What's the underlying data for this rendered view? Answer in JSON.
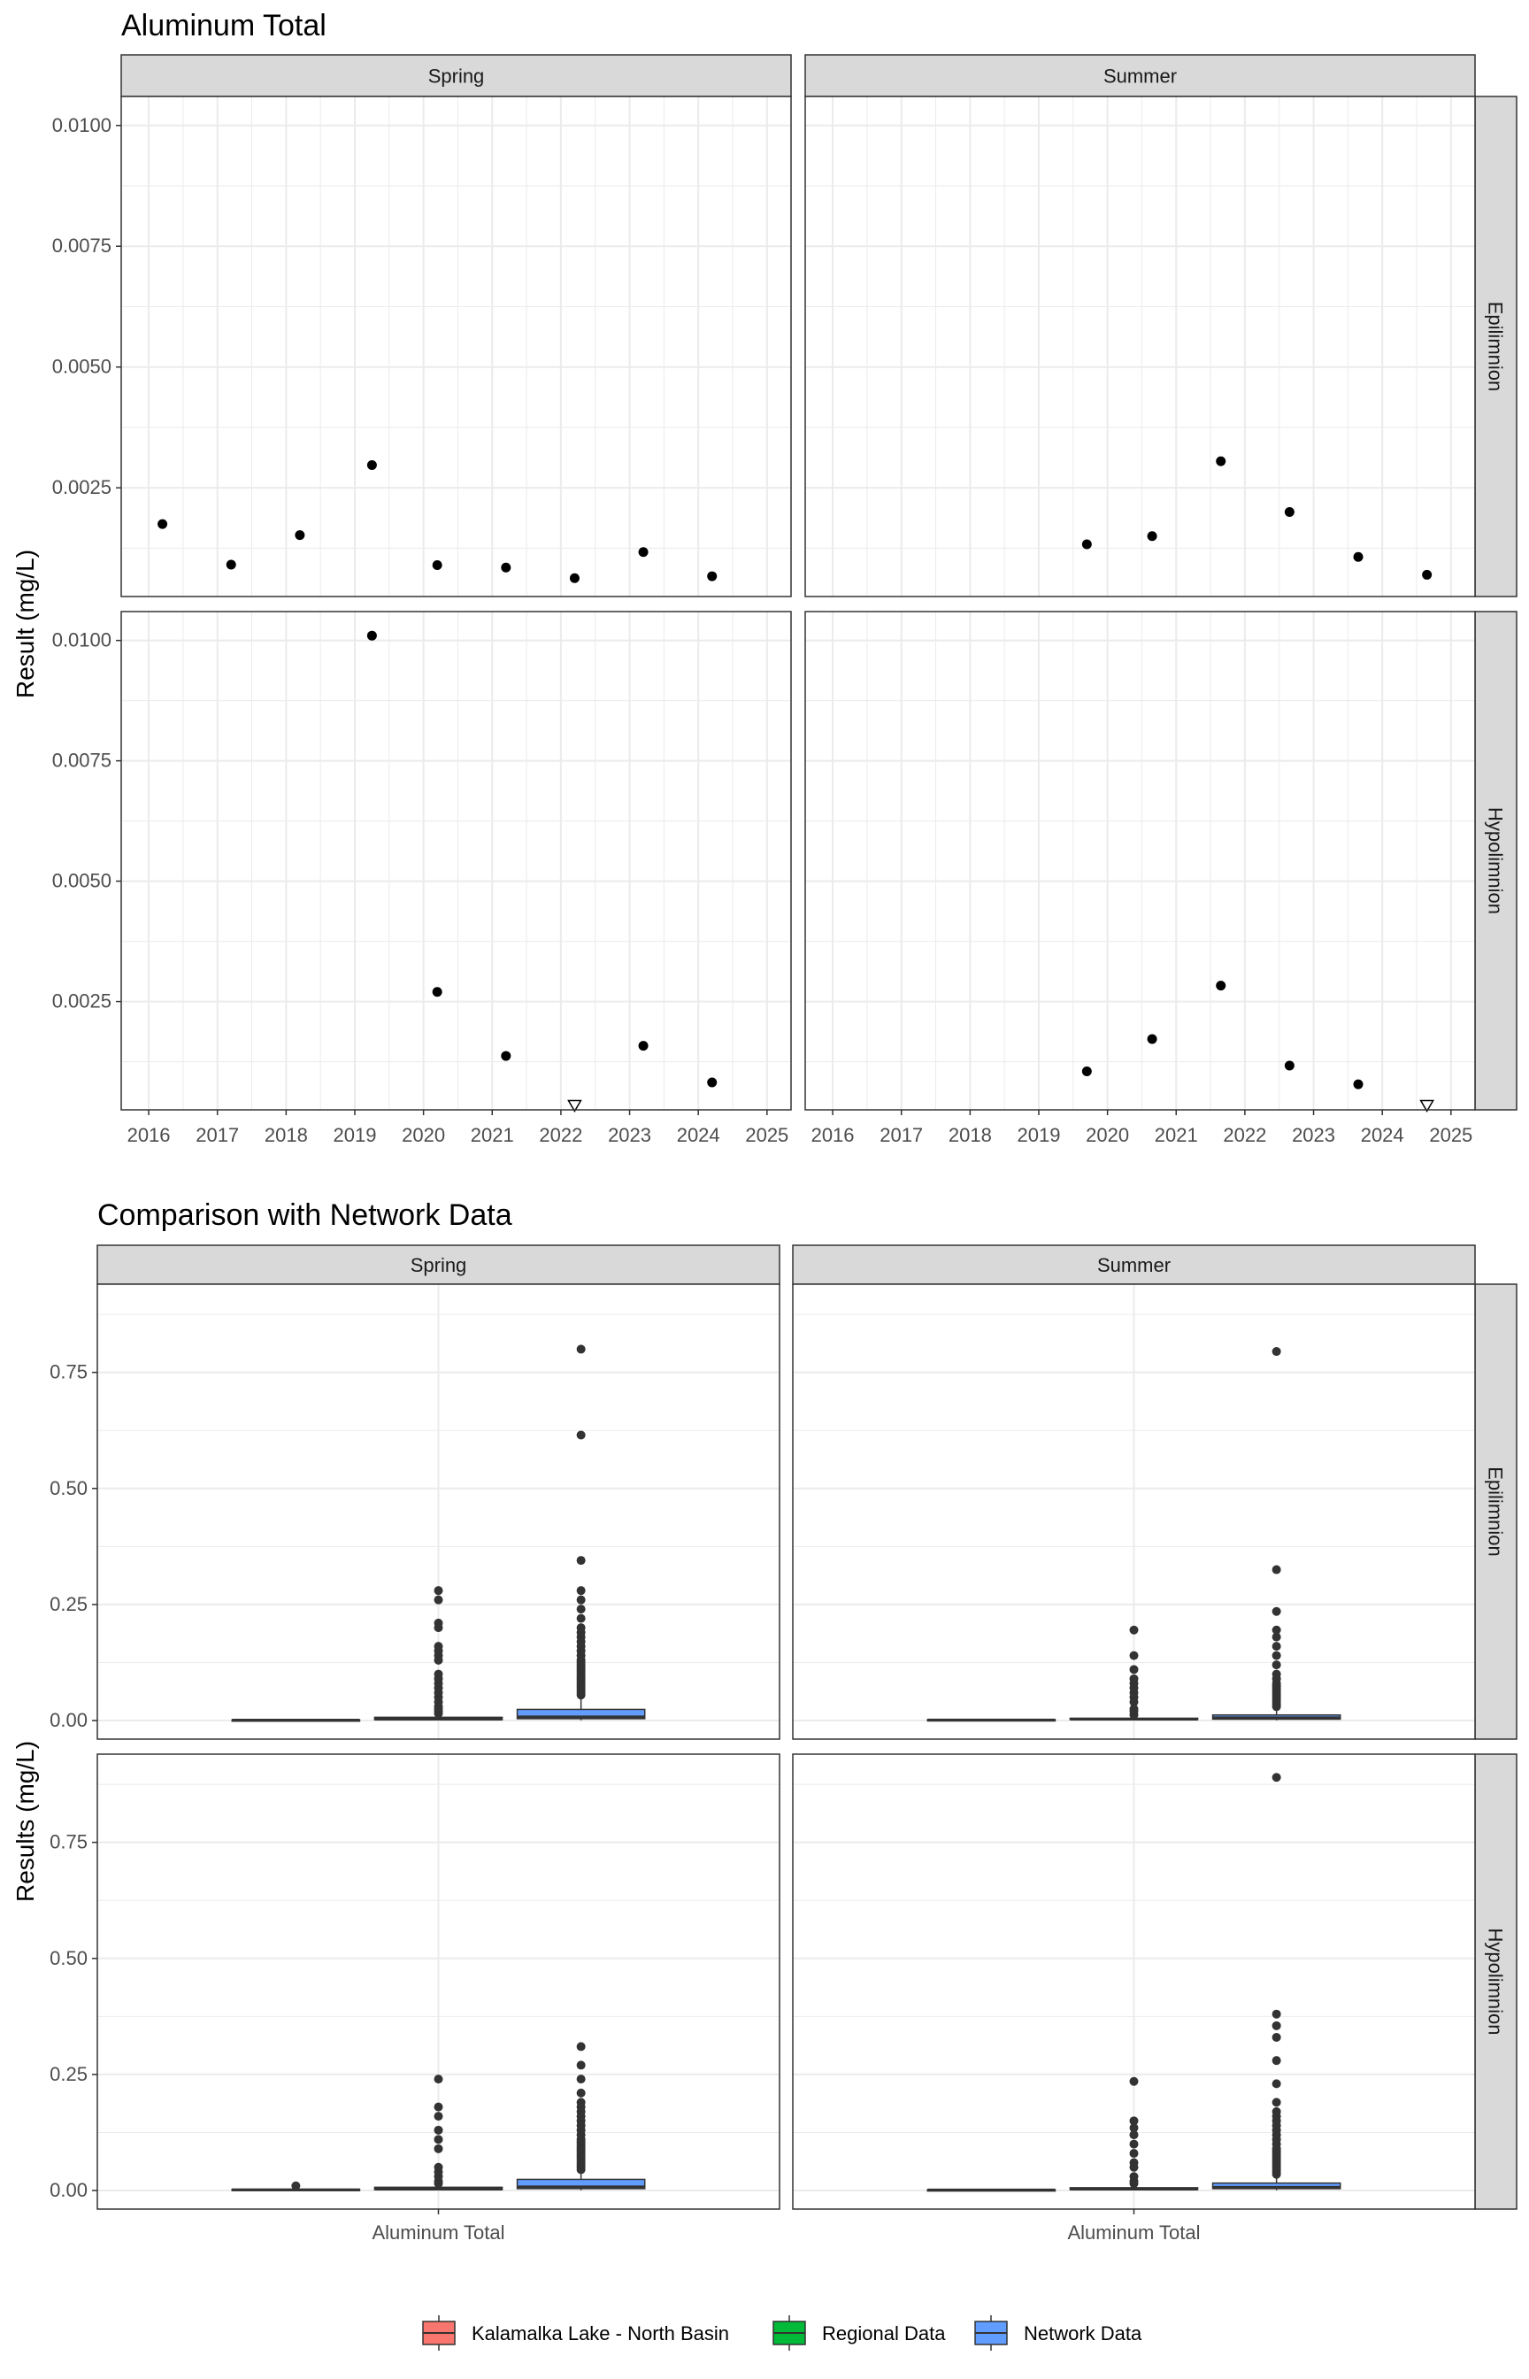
{
  "colors": {
    "strip_bg": "#d9d9d9",
    "grid": "#ebebeb",
    "point": "#000000",
    "kalamalka": "#f8766d",
    "regional": "#00ba38",
    "network": "#619cff",
    "outlier": "#333333"
  },
  "chart_data": [
    {
      "type": "scatter",
      "title": "Aluminum Total",
      "ylabel": "Result (mg/L)",
      "xlabel": "",
      "xlim": [
        2015.6,
        2025.35
      ],
      "ylim": [
        0.00025,
        0.0106
      ],
      "x_ticks": [
        2016,
        2017,
        2018,
        2019,
        2020,
        2021,
        2022,
        2023,
        2024,
        2025
      ],
      "x_tick_labels": [
        "2016",
        "2017",
        "2018",
        "2019",
        "2020",
        "2021",
        "2022",
        "2023",
        "2024",
        "2025"
      ],
      "y_ticks": [
        0.0025,
        0.005,
        0.0075,
        0.01
      ],
      "y_tick_labels": [
        "0.0025",
        "0.0050",
        "0.0075",
        "0.0100"
      ],
      "grid": true,
      "col_facets": [
        "Spring",
        "Summer"
      ],
      "row_facets": [
        "Epilimnion",
        "Hypolimnion"
      ],
      "panels": [
        {
          "col": "Spring",
          "row": "Epilimnion",
          "points": [
            {
              "x": 2016.2,
              "y": 0.00175
            },
            {
              "x": 2017.2,
              "y": 0.00091
            },
            {
              "x": 2018.2,
              "y": 0.00152
            },
            {
              "x": 2019.25,
              "y": 0.00297
            },
            {
              "x": 2020.2,
              "y": 0.0009
            },
            {
              "x": 2021.2,
              "y": 0.00085
            },
            {
              "x": 2022.2,
              "y": 0.00063
            },
            {
              "x": 2023.2,
              "y": 0.00117
            },
            {
              "x": 2024.2,
              "y": 0.00067
            }
          ],
          "below_dl": []
        },
        {
          "col": "Summer",
          "row": "Epilimnion",
          "points": [
            {
              "x": 2019.7,
              "y": 0.00133
            },
            {
              "x": 2020.65,
              "y": 0.0015
            },
            {
              "x": 2021.65,
              "y": 0.00305
            },
            {
              "x": 2022.65,
              "y": 0.002
            },
            {
              "x": 2023.65,
              "y": 0.00107
            },
            {
              "x": 2024.65,
              "y": 0.0007
            }
          ],
          "below_dl": []
        },
        {
          "col": "Spring",
          "row": "Hypolimnion",
          "points": [
            {
              "x": 2019.25,
              "y": 0.0101
            },
            {
              "x": 2020.2,
              "y": 0.0027
            },
            {
              "x": 2021.2,
              "y": 0.00137
            },
            {
              "x": 2023.2,
              "y": 0.00158
            },
            {
              "x": 2024.2,
              "y": 0.00082
            }
          ],
          "below_dl": [
            {
              "x": 2022.2,
              "y": 0.00035
            }
          ]
        },
        {
          "col": "Summer",
          "row": "Hypolimnion",
          "points": [
            {
              "x": 2019.7,
              "y": 0.00105
            },
            {
              "x": 2020.65,
              "y": 0.00172
            },
            {
              "x": 2021.65,
              "y": 0.00283
            },
            {
              "x": 2022.65,
              "y": 0.00117
            },
            {
              "x": 2023.65,
              "y": 0.00078
            }
          ],
          "below_dl": [
            {
              "x": 2024.65,
              "y": 0.00035
            }
          ]
        }
      ]
    },
    {
      "type": "box",
      "title": "Comparison with Network Data",
      "ylabel": "Results (mg/L)",
      "xlabel": "",
      "x_category": "Aluminum Total",
      "ylim": [
        -0.04,
        0.94
      ],
      "y_ticks": [
        0,
        0.25,
        0.5,
        0.75
      ],
      "y_tick_labels": [
        "0.00",
        "0.25",
        "0.50",
        "0.75"
      ],
      "grid": true,
      "legend_position": "bottom",
      "legend": [
        "Kalamalka Lake - North Basin",
        "Regional Data",
        "Network Data"
      ],
      "col_facets": [
        "Spring",
        "Summer"
      ],
      "row_facets": [
        "Epilimnion",
        "Hypolimnion"
      ],
      "panels": [
        {
          "col": "Spring",
          "row": "Epilimnion",
          "boxes": [
            {
              "group": "Kalamalka Lake - North Basin",
              "q1": 0.0006,
              "median": 0.0009,
              "q3": 0.0015,
              "whisker_low": 0.0005,
              "whisker_high": 0.003,
              "outliers": []
            },
            {
              "group": "Regional Data",
              "q1": 0.002,
              "median": 0.003,
              "q3": 0.007,
              "whisker_low": 0.0005,
              "whisker_high": 0.012,
              "outliers": [
                0.015,
                0.02,
                0.025,
                0.03,
                0.04,
                0.05,
                0.06,
                0.07,
                0.08,
                0.09,
                0.1,
                0.13,
                0.14,
                0.15,
                0.16,
                0.2,
                0.21,
                0.26,
                0.28
              ]
            },
            {
              "group": "Network Data",
              "q1": 0.004,
              "median": 0.008,
              "q3": 0.024,
              "whisker_low": 0.0005,
              "whisker_high": 0.05,
              "outliers": [
                0.055,
                0.06,
                0.065,
                0.07,
                0.075,
                0.08,
                0.085,
                0.09,
                0.095,
                0.1,
                0.105,
                0.11,
                0.115,
                0.12,
                0.125,
                0.13,
                0.14,
                0.15,
                0.16,
                0.17,
                0.18,
                0.19,
                0.2,
                0.22,
                0.24,
                0.26,
                0.28,
                0.345,
                0.615,
                0.8
              ]
            }
          ]
        },
        {
          "col": "Summer",
          "row": "Epilimnion",
          "boxes": [
            {
              "group": "Kalamalka Lake - North Basin",
              "q1": 0.0007,
              "median": 0.0012,
              "q3": 0.002,
              "whisker_low": 0.0006,
              "whisker_high": 0.003,
              "outliers": []
            },
            {
              "group": "Regional Data",
              "q1": 0.002,
              "median": 0.003,
              "q3": 0.005,
              "whisker_low": 0.0005,
              "whisker_high": 0.009,
              "outliers": [
                0.012,
                0.02,
                0.025,
                0.04,
                0.05,
                0.06,
                0.07,
                0.08,
                0.09,
                0.11,
                0.14,
                0.195
              ]
            },
            {
              "group": "Network Data",
              "q1": 0.003,
              "median": 0.006,
              "q3": 0.012,
              "whisker_low": 0.0005,
              "whisker_high": 0.025,
              "outliers": [
                0.03,
                0.035,
                0.04,
                0.045,
                0.05,
                0.055,
                0.06,
                0.065,
                0.07,
                0.075,
                0.08,
                0.09,
                0.1,
                0.12,
                0.14,
                0.16,
                0.18,
                0.195,
                0.235,
                0.325,
                0.795
              ]
            }
          ]
        },
        {
          "col": "Spring",
          "row": "Hypolimnion",
          "boxes": [
            {
              "group": "Kalamalka Lake - North Basin",
              "q1": 0.0008,
              "median": 0.0014,
              "q3": 0.0027,
              "whisker_low": 0.0007,
              "whisker_high": 0.003,
              "outliers": [
                0.0101
              ]
            },
            {
              "group": "Regional Data",
              "q1": 0.002,
              "median": 0.003,
              "q3": 0.007,
              "whisker_low": 0.0005,
              "whisker_high": 0.012,
              "outliers": [
                0.015,
                0.02,
                0.03,
                0.04,
                0.05,
                0.09,
                0.11,
                0.13,
                0.16,
                0.18,
                0.24
              ]
            },
            {
              "group": "Network Data",
              "q1": 0.004,
              "median": 0.008,
              "q3": 0.024,
              "whisker_low": 0.0005,
              "whisker_high": 0.04,
              "outliers": [
                0.045,
                0.05,
                0.055,
                0.06,
                0.065,
                0.07,
                0.075,
                0.08,
                0.085,
                0.09,
                0.095,
                0.1,
                0.105,
                0.11,
                0.12,
                0.13,
                0.14,
                0.15,
                0.16,
                0.17,
                0.18,
                0.19,
                0.21,
                0.24,
                0.27,
                0.31
              ]
            }
          ]
        },
        {
          "col": "Summer",
          "row": "Hypolimnion",
          "boxes": [
            {
              "group": "Kalamalka Lake - North Basin",
              "q1": 0.0008,
              "median": 0.0012,
              "q3": 0.0017,
              "whisker_low": 0.0007,
              "whisker_high": 0.003,
              "outliers": []
            },
            {
              "group": "Regional Data",
              "q1": 0.002,
              "median": 0.003,
              "q3": 0.006,
              "whisker_low": 0.0005,
              "whisker_high": 0.01,
              "outliers": [
                0.015,
                0.02,
                0.03,
                0.05,
                0.06,
                0.08,
                0.1,
                0.12,
                0.135,
                0.15,
                0.235
              ]
            },
            {
              "group": "Network Data",
              "q1": 0.004,
              "median": 0.007,
              "q3": 0.016,
              "whisker_low": 0.0005,
              "whisker_high": 0.03,
              "outliers": [
                0.035,
                0.04,
                0.045,
                0.05,
                0.055,
                0.06,
                0.065,
                0.07,
                0.075,
                0.08,
                0.085,
                0.09,
                0.1,
                0.11,
                0.12,
                0.13,
                0.14,
                0.15,
                0.16,
                0.17,
                0.19,
                0.23,
                0.28,
                0.33,
                0.355,
                0.38,
                0.89
              ]
            }
          ]
        }
      ]
    }
  ]
}
